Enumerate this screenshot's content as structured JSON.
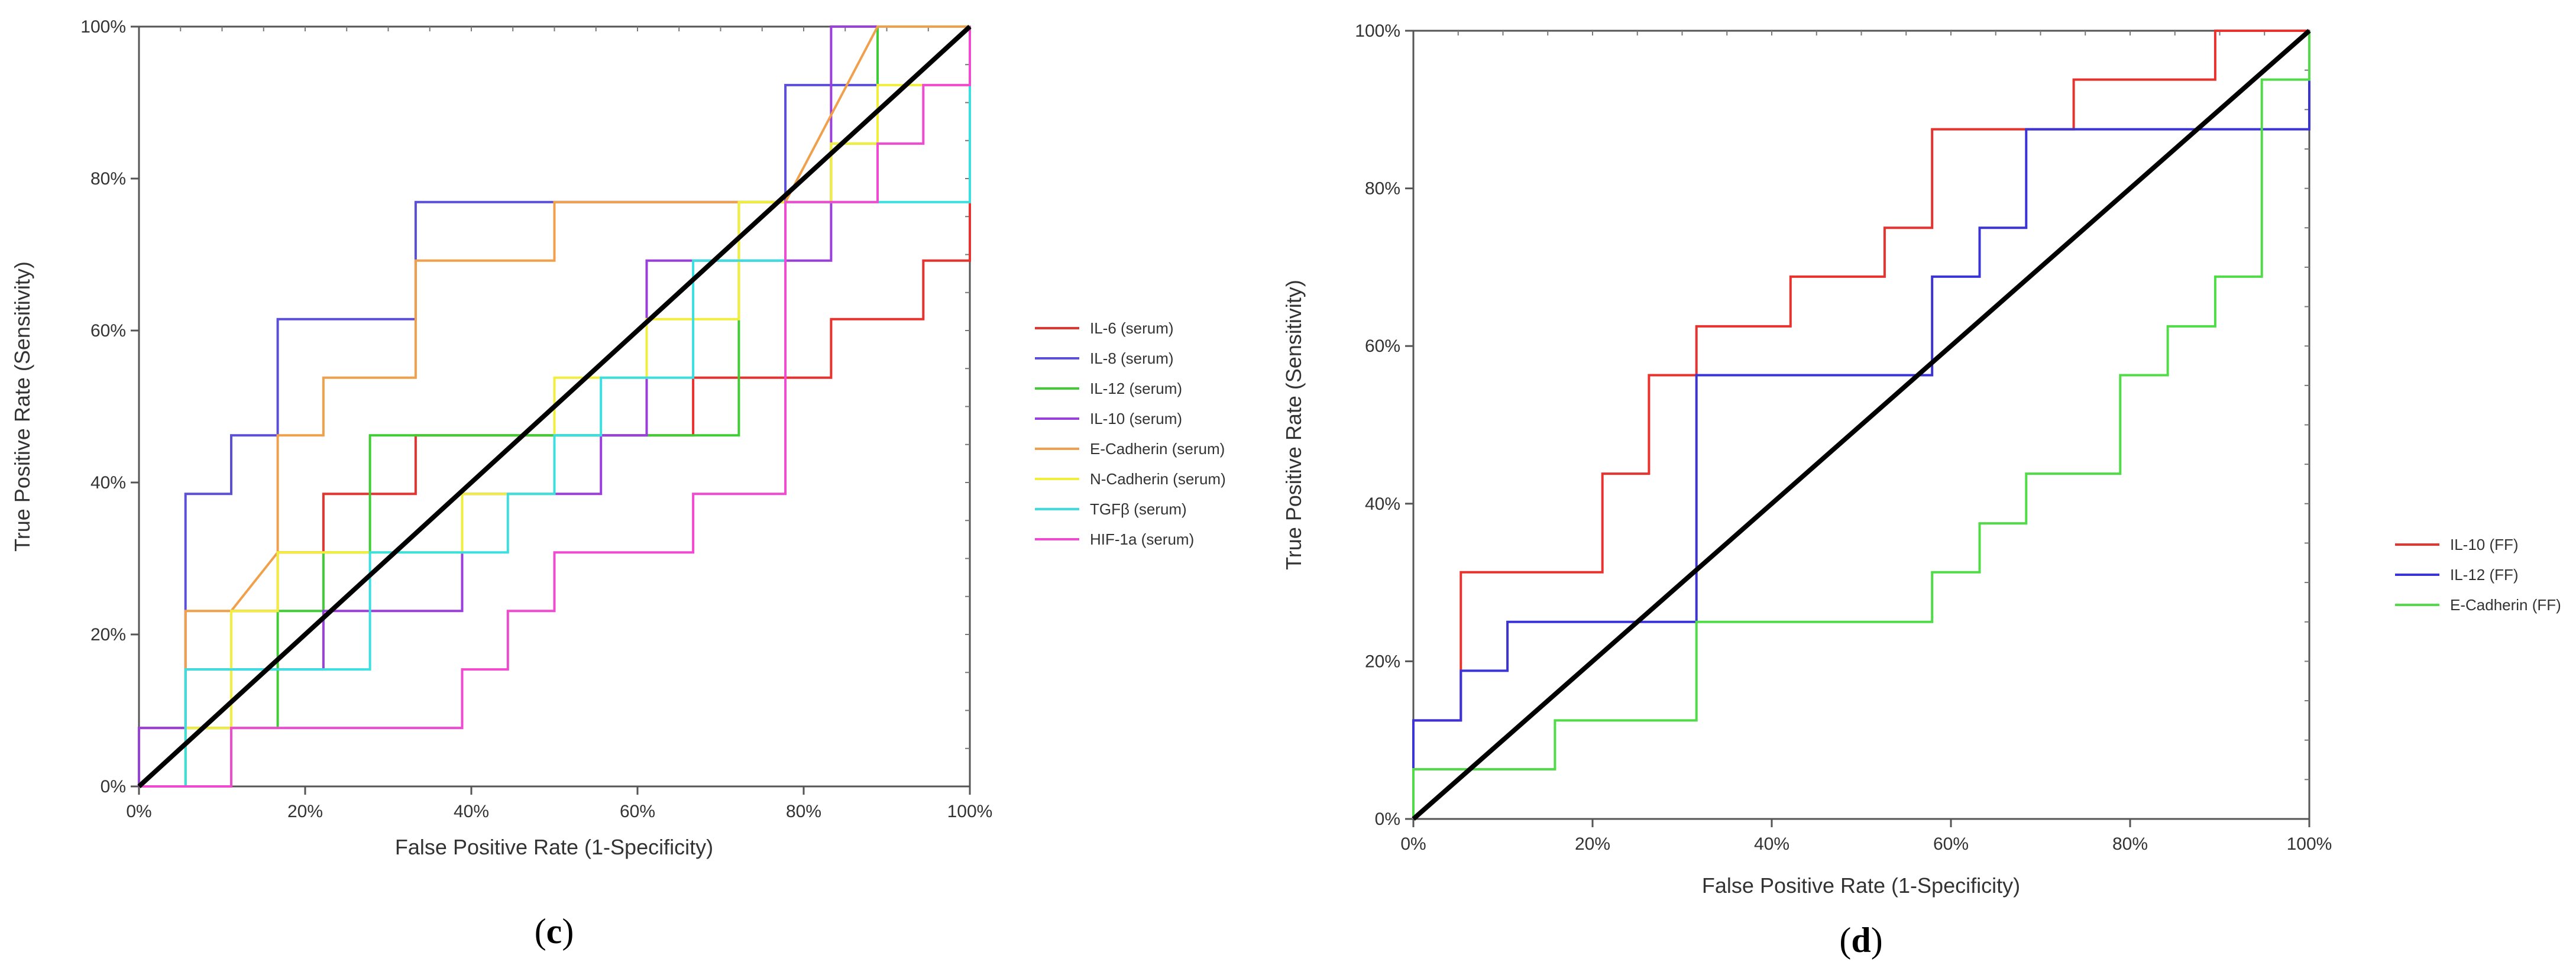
{
  "chart_data": [
    {
      "type": "line",
      "panel_label_open": "(",
      "panel_label": "c",
      "panel_label_close": ")",
      "xlabel": "False Positive Rate (1-Specificity)",
      "ylabel": "True Positive Rate (Sensitivity)",
      "xlim": [
        0,
        100
      ],
      "ylim": [
        0,
        100
      ],
      "xticks": [
        "0%",
        "20%",
        "40%",
        "60%",
        "80%",
        "100%"
      ],
      "yticks": [
        "0%",
        "20%",
        "40%",
        "60%",
        "80%",
        "100%"
      ],
      "legend_position": "right",
      "diagonal_color": "#000000",
      "series": [
        {
          "name": "IL-6  (serum)",
          "color": "#e8322d",
          "points": [
            [
              0,
              0
            ],
            [
              0,
              7.7
            ],
            [
              5.6,
              7.7
            ],
            [
              5.6,
              15.4
            ],
            [
              11.1,
              15.4
            ],
            [
              11.1,
              23.1
            ],
            [
              16.7,
              23.1
            ],
            [
              16.7,
              30.8
            ],
            [
              22.2,
              30.8
            ],
            [
              22.2,
              38.5
            ],
            [
              33.3,
              38.5
            ],
            [
              33.3,
              46.2
            ],
            [
              66.7,
              46.2
            ],
            [
              66.7,
              53.8
            ],
            [
              77.8,
              53.8
            ],
            [
              83.3,
              53.8
            ],
            [
              83.3,
              61.5
            ],
            [
              94.4,
              61.5
            ],
            [
              94.4,
              69.2
            ],
            [
              100,
              69.2
            ],
            [
              100,
              76.9
            ]
          ]
        },
        {
          "name": "IL-8  (serum)",
          "color": "#5a4fd6",
          "points": [
            [
              0,
              0
            ],
            [
              5.6,
              0
            ],
            [
              5.6,
              38.5
            ],
            [
              11.1,
              38.5
            ],
            [
              11.1,
              46.2
            ],
            [
              16.7,
              46.2
            ],
            [
              16.7,
              61.5
            ],
            [
              33.3,
              61.5
            ],
            [
              33.3,
              76.9
            ],
            [
              77.8,
              76.9
            ],
            [
              77.8,
              92.3
            ],
            [
              88.9,
              92.3
            ],
            [
              88.9,
              100
            ],
            [
              100,
              100
            ]
          ]
        },
        {
          "name": "IL-12  (serum)",
          "color": "#3fcc34",
          "points": [
            [
              0,
              0
            ],
            [
              5.6,
              0
            ],
            [
              5.6,
              7.7
            ],
            [
              16.7,
              7.7
            ],
            [
              16.7,
              23.1
            ],
            [
              22.2,
              23.1
            ],
            [
              22.2,
              30.8
            ],
            [
              27.8,
              30.8
            ],
            [
              27.8,
              46.2
            ],
            [
              72.2,
              46.2
            ],
            [
              72.2,
              76.9
            ],
            [
              83.3,
              76.9
            ],
            [
              83.3,
              84.6
            ],
            [
              88.9,
              84.6
            ],
            [
              88.9,
              100
            ],
            [
              100,
              100
            ]
          ]
        },
        {
          "name": "IL-10  (serum)",
          "color": "#9a3fdc",
          "points": [
            [
              0,
              0
            ],
            [
              0,
              7.7
            ],
            [
              11.1,
              7.7
            ],
            [
              11.1,
              15.4
            ],
            [
              22.2,
              15.4
            ],
            [
              22.2,
              23.1
            ],
            [
              38.9,
              23.1
            ],
            [
              38.9,
              38.5
            ],
            [
              55.6,
              38.5
            ],
            [
              55.6,
              46.2
            ],
            [
              61.1,
              46.2
            ],
            [
              61.1,
              69.2
            ],
            [
              83.3,
              69.2
            ],
            [
              83.3,
              100
            ],
            [
              100,
              100
            ]
          ]
        },
        {
          "name": "E-Cadherin  (serum)",
          "color": "#f0a04a",
          "points": [
            [
              0,
              0
            ],
            [
              5.6,
              0
            ],
            [
              5.6,
              23.1
            ],
            [
              11.1,
              23.1
            ],
            [
              16.7,
              30.8
            ],
            [
              16.7,
              46.2
            ],
            [
              22.2,
              46.2
            ],
            [
              22.2,
              53.8
            ],
            [
              33.3,
              53.8
            ],
            [
              33.3,
              69.2
            ],
            [
              50,
              69.2
            ],
            [
              50,
              76.9
            ],
            [
              77.8,
              76.9
            ],
            [
              88.9,
              100
            ],
            [
              100,
              100
            ]
          ]
        },
        {
          "name": "N-Cadherin  (serum)",
          "color": "#f2ee3c",
          "points": [
            [
              0,
              0
            ],
            [
              5.6,
              0
            ],
            [
              5.6,
              7.7
            ],
            [
              11.1,
              7.7
            ],
            [
              11.1,
              23.1
            ],
            [
              16.7,
              23.1
            ],
            [
              16.7,
              30.8
            ],
            [
              38.9,
              30.8
            ],
            [
              38.9,
              38.5
            ],
            [
              50,
              38.5
            ],
            [
              50,
              53.8
            ],
            [
              61.1,
              53.8
            ],
            [
              61.1,
              61.5
            ],
            [
              72.2,
              61.5
            ],
            [
              72.2,
              76.9
            ],
            [
              83.3,
              76.9
            ],
            [
              83.3,
              84.6
            ],
            [
              88.9,
              84.6
            ],
            [
              88.9,
              92.3
            ],
            [
              100,
              92.3
            ],
            [
              100,
              100
            ]
          ]
        },
        {
          "name": "TGFβ  (serum)",
          "color": "#3cdfe0",
          "points": [
            [
              0,
              0
            ],
            [
              5.6,
              0
            ],
            [
              5.6,
              15.4
            ],
            [
              27.8,
              15.4
            ],
            [
              27.8,
              30.8
            ],
            [
              44.4,
              30.8
            ],
            [
              44.4,
              38.5
            ],
            [
              50,
              38.5
            ],
            [
              50,
              46.2
            ],
            [
              55.6,
              46.2
            ],
            [
              55.6,
              53.8
            ],
            [
              66.7,
              53.8
            ],
            [
              66.7,
              69.2
            ],
            [
              77.8,
              69.2
            ],
            [
              77.8,
              76.9
            ],
            [
              100,
              76.9
            ],
            [
              100,
              100
            ]
          ]
        },
        {
          "name": "HIF-1a  (serum)",
          "color": "#f04ad0",
          "points": [
            [
              0,
              0
            ],
            [
              11.1,
              0
            ],
            [
              11.1,
              7.7
            ],
            [
              38.9,
              7.7
            ],
            [
              38.9,
              15.4
            ],
            [
              44.4,
              15.4
            ],
            [
              44.4,
              23.1
            ],
            [
              50,
              23.1
            ],
            [
              50,
              30.8
            ],
            [
              66.7,
              30.8
            ],
            [
              66.7,
              38.5
            ],
            [
              77.8,
              38.5
            ],
            [
              77.8,
              76.9
            ],
            [
              88.9,
              76.9
            ],
            [
              88.9,
              84.6
            ],
            [
              94.4,
              84.6
            ],
            [
              94.4,
              92.3
            ],
            [
              100,
              92.3
            ],
            [
              100,
              100
            ]
          ]
        }
      ]
    },
    {
      "type": "line",
      "panel_label_open": "(",
      "panel_label": "d",
      "panel_label_close": ")",
      "xlabel": "False Positive Rate (1-Specificity)",
      "ylabel": "True Positive Rate (Sensitivity)",
      "xlim": [
        0,
        100
      ],
      "ylim": [
        0,
        100
      ],
      "xticks": [
        "0%",
        "20%",
        "40%",
        "60%",
        "80%",
        "100%"
      ],
      "yticks": [
        "0%",
        "20%",
        "40%",
        "60%",
        "80%",
        "100%"
      ],
      "legend_position": "right",
      "diagonal_color": "#000000",
      "series": [
        {
          "name": "IL-10  (FF)",
          "color": "#e8322d",
          "points": [
            [
              0,
              0
            ],
            [
              0,
              12.5
            ],
            [
              5.3,
              12.5
            ],
            [
              5.3,
              31.3
            ],
            [
              21.1,
              31.3
            ],
            [
              21.1,
              43.8
            ],
            [
              26.3,
              43.8
            ],
            [
              26.3,
              56.3
            ],
            [
              31.6,
              56.3
            ],
            [
              31.6,
              62.5
            ],
            [
              42.1,
              62.5
            ],
            [
              42.1,
              68.8
            ],
            [
              52.6,
              68.8
            ],
            [
              52.6,
              75
            ],
            [
              57.9,
              75
            ],
            [
              57.9,
              87.5
            ],
            [
              73.7,
              87.5
            ],
            [
              73.7,
              93.8
            ],
            [
              89.5,
              93.8
            ],
            [
              89.5,
              100
            ],
            [
              100,
              100
            ]
          ]
        },
        {
          "name": "IL-12  (FF)",
          "color": "#3a34d6",
          "points": [
            [
              0,
              0
            ],
            [
              0,
              12.5
            ],
            [
              5.3,
              12.5
            ],
            [
              5.3,
              18.8
            ],
            [
              10.5,
              18.8
            ],
            [
              10.5,
              25
            ],
            [
              31.6,
              25
            ],
            [
              31.6,
              56.3
            ],
            [
              57.9,
              56.3
            ],
            [
              57.9,
              68.8
            ],
            [
              63.2,
              68.8
            ],
            [
              63.2,
              75
            ],
            [
              68.4,
              75
            ],
            [
              68.4,
              87.5
            ],
            [
              100,
              87.5
            ],
            [
              100,
              100
            ]
          ]
        },
        {
          "name": "E-Cadherin  (FF)",
          "color": "#4fdc46",
          "points": [
            [
              0,
              0
            ],
            [
              0,
              6.3
            ],
            [
              15.8,
              6.3
            ],
            [
              15.8,
              12.5
            ],
            [
              31.6,
              12.5
            ],
            [
              31.6,
              25
            ],
            [
              57.9,
              25
            ],
            [
              57.9,
              31.3
            ],
            [
              63.2,
              31.3
            ],
            [
              63.2,
              37.5
            ],
            [
              68.4,
              37.5
            ],
            [
              68.4,
              43.8
            ],
            [
              78.9,
              43.8
            ],
            [
              78.9,
              56.3
            ],
            [
              84.2,
              56.3
            ],
            [
              84.2,
              62.5
            ],
            [
              89.5,
              62.5
            ],
            [
              89.5,
              68.8
            ],
            [
              94.7,
              68.8
            ],
            [
              94.7,
              93.8
            ],
            [
              100,
              93.8
            ],
            [
              100,
              100
            ]
          ]
        }
      ]
    }
  ]
}
